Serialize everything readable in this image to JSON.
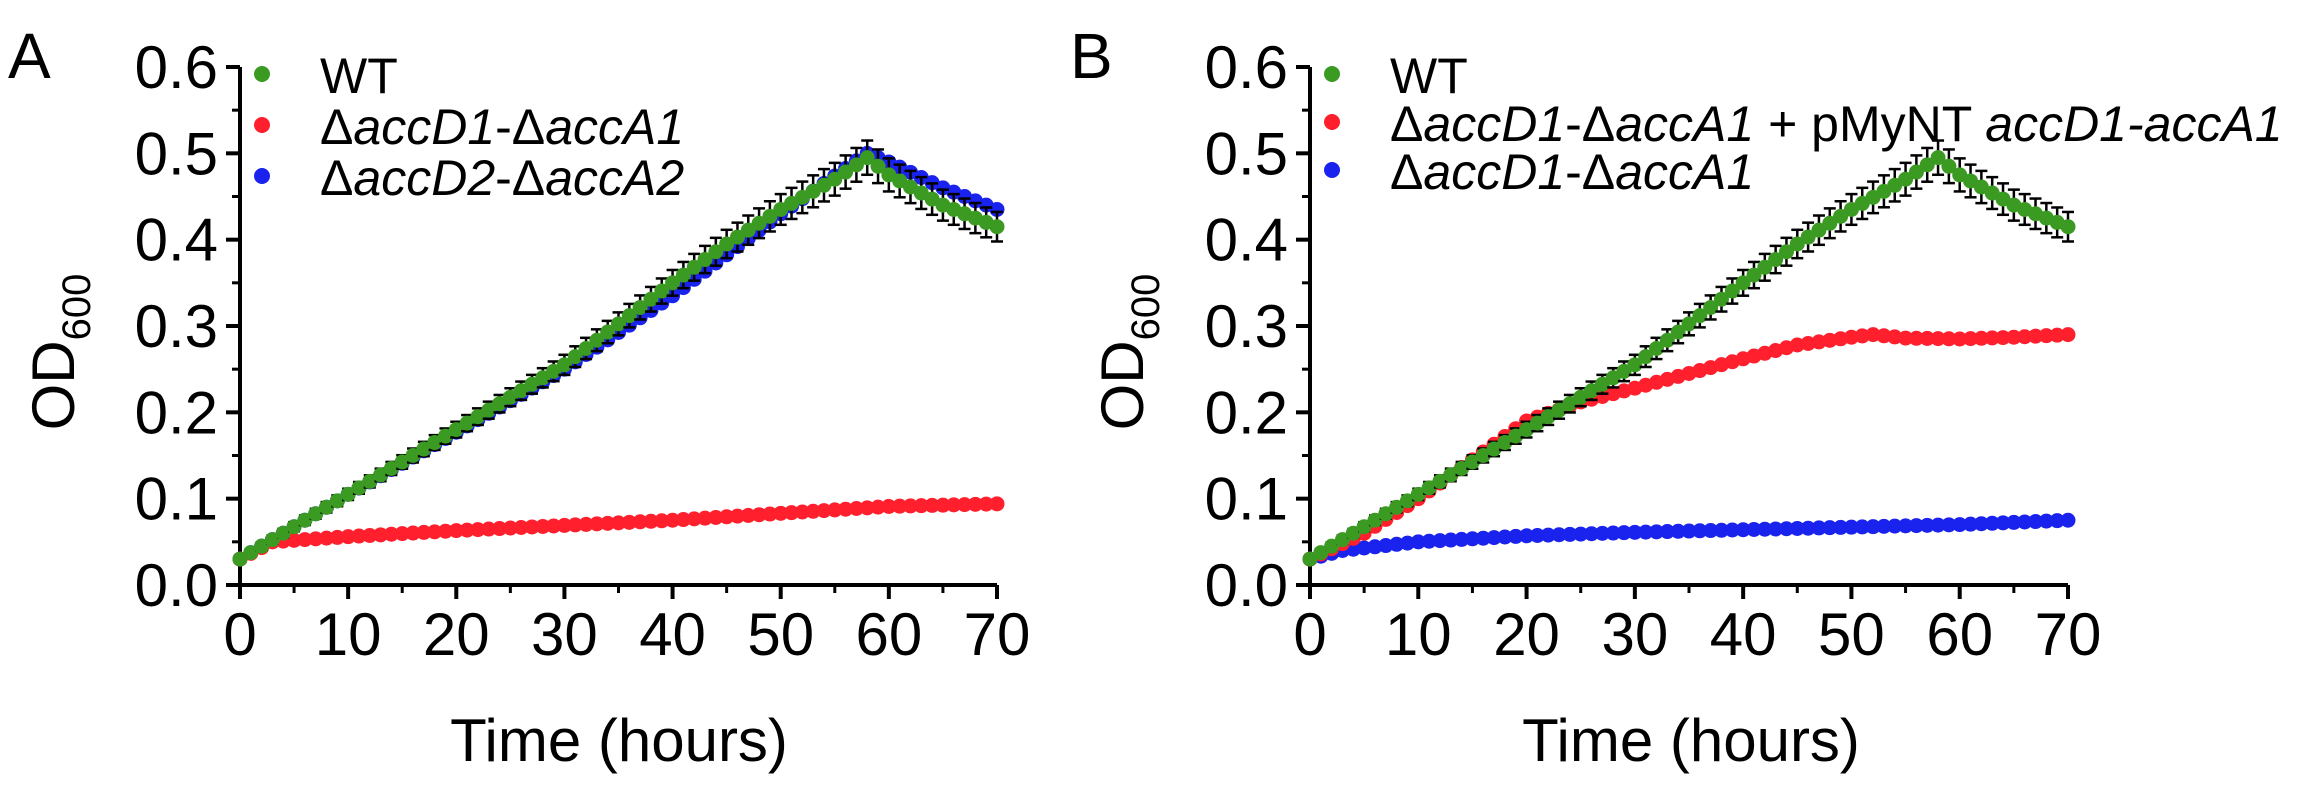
{
  "chart_data": [
    {
      "panel": "A",
      "type": "scatter",
      "xlabel": "Time (hours)",
      "ylabel": "OD",
      "ylabel_sub": "600",
      "xlim": [
        0,
        70
      ],
      "ylim": [
        0,
        0.6
      ],
      "xticks": [
        "0",
        "10",
        "20",
        "30",
        "40",
        "50",
        "60",
        "70"
      ],
      "yticks": [
        "0.0",
        "0.1",
        "0.2",
        "0.3",
        "0.4",
        "0.5",
        "0.6"
      ],
      "legend_position": "top-left",
      "series": [
        {
          "legend": [
            {
              "t": "WT",
              "i": false
            }
          ],
          "color": "#3a9a22",
          "error_bars": true,
          "x": [
            0,
            10,
            20,
            30,
            40,
            45,
            50,
            55,
            58,
            60,
            65,
            70
          ],
          "y": [
            0.03,
            0.105,
            0.18,
            0.255,
            0.35,
            0.395,
            0.435,
            0.47,
            0.495,
            0.475,
            0.44,
            0.415
          ]
        },
        {
          "legend": [
            {
              "t": "Δ",
              "i": false
            },
            {
              "t": "accD1",
              "i": true
            },
            {
              "t": "-Δ",
              "i": false
            },
            {
              "t": "accA1",
              "i": true
            }
          ],
          "color": "#ff1f2d",
          "error_bars": false,
          "x": [
            0,
            3,
            10,
            20,
            30,
            40,
            50,
            60,
            70
          ],
          "y": [
            0.03,
            0.05,
            0.056,
            0.063,
            0.069,
            0.075,
            0.083,
            0.091,
            0.094
          ]
        },
        {
          "legend": [
            {
              "t": "Δ",
              "i": false
            },
            {
              "t": "accD2",
              "i": true
            },
            {
              "t": "-Δ",
              "i": false
            },
            {
              "t": "accA2",
              "i": true
            }
          ],
          "color": "#1a22ee",
          "error_bars": false,
          "x": [
            0,
            10,
            20,
            30,
            40,
            50,
            58,
            60,
            65,
            70
          ],
          "y": [
            0.03,
            0.105,
            0.177,
            0.25,
            0.335,
            0.43,
            0.5,
            0.49,
            0.46,
            0.435
          ]
        }
      ]
    },
    {
      "panel": "B",
      "type": "scatter",
      "xlabel": "Time (hours)",
      "ylabel": "OD",
      "ylabel_sub": "600",
      "xlim": [
        0,
        70
      ],
      "ylim": [
        0,
        0.6
      ],
      "xticks": [
        "0",
        "10",
        "20",
        "30",
        "40",
        "50",
        "60",
        "70"
      ],
      "yticks": [
        "0.0",
        "0.1",
        "0.2",
        "0.3",
        "0.4",
        "0.5",
        "0.6"
      ],
      "legend_position": "top-left",
      "series": [
        {
          "legend": [
            {
              "t": "WT",
              "i": false
            }
          ],
          "color": "#3a9a22",
          "error_bars": true,
          "x": [
            0,
            10,
            20,
            30,
            40,
            45,
            50,
            55,
            58,
            60,
            65,
            70
          ],
          "y": [
            0.03,
            0.105,
            0.18,
            0.255,
            0.35,
            0.395,
            0.435,
            0.47,
            0.495,
            0.475,
            0.44,
            0.415
          ]
        },
        {
          "legend": [
            {
              "t": "Δ",
              "i": false
            },
            {
              "t": "accD1",
              "i": true
            },
            {
              "t": "-Δ",
              "i": false
            },
            {
              "t": "accA1",
              "i": true
            },
            {
              "t": " + pMyNT ",
              "i": false
            },
            {
              "t": "accD1-accA1",
              "i": true
            }
          ],
          "color": "#ff1f2d",
          "error_bars": false,
          "x": [
            0,
            5,
            10,
            15,
            20,
            25,
            30,
            35,
            40,
            45,
            50,
            52,
            55,
            60,
            65,
            70
          ],
          "y": [
            0.03,
            0.06,
            0.1,
            0.145,
            0.19,
            0.212,
            0.228,
            0.245,
            0.262,
            0.278,
            0.287,
            0.29,
            0.286,
            0.285,
            0.287,
            0.29
          ]
        },
        {
          "legend": [
            {
              "t": "Δ",
              "i": false
            },
            {
              "t": "accD1",
              "i": true
            },
            {
              "t": "-Δ",
              "i": false
            },
            {
              "t": "accA1",
              "i": true
            }
          ],
          "color": "#1a22ee",
          "error_bars": false,
          "x": [
            0,
            3,
            10,
            20,
            30,
            40,
            50,
            60,
            70
          ],
          "y": [
            0.03,
            0.04,
            0.05,
            0.057,
            0.061,
            0.064,
            0.067,
            0.07,
            0.075
          ]
        }
      ]
    }
  ]
}
